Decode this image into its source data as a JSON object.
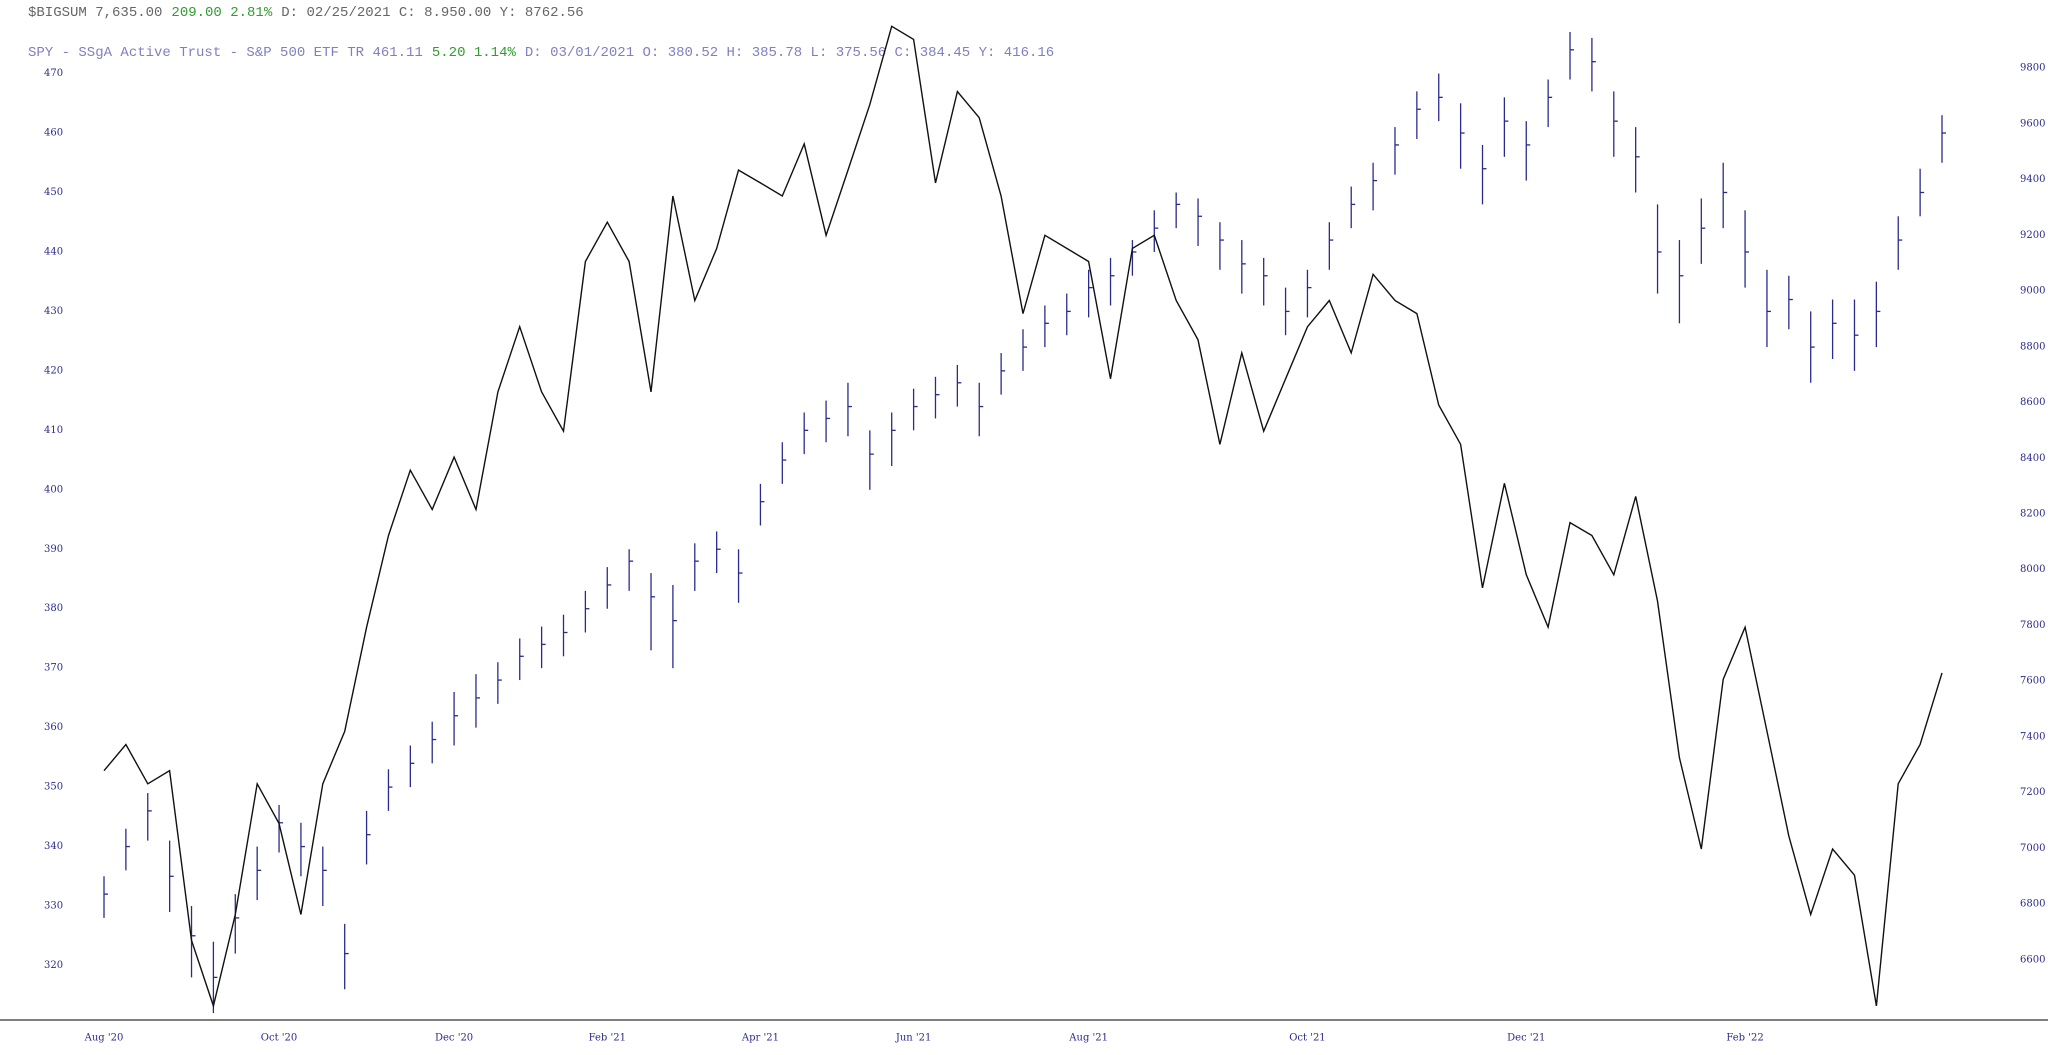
{
  "chart_data": {
    "type": "ohlc",
    "header": [
      [
        {
          "text": "$BIGSUM 7,635.00",
          "color": "#666666"
        },
        {
          "text": "209.00 2.81%",
          "color": "#2e9e2e"
        },
        {
          "text": "D: 02/25/2021 C: 8.950.00 Y:  8762.56",
          "color": "#666666"
        }
      ],
      [
        {
          "text": "SPY - SSgA Active Trust - S&P 500 ETF TR 461.11",
          "color": "#8080c0"
        },
        {
          "text": "5.20 1.14%",
          "color": "#2e9e2e"
        },
        {
          "text": "D: 03/01/2021 O: 380.52 H: 385.78 L: 375.56 C: 384.45 Y: 416.16",
          "color": "#8080c0"
        }
      ]
    ],
    "categories": [
      "Aug '20",
      null,
      null,
      null,
      null,
      null,
      null,
      null,
      "Oct '20",
      null,
      null,
      null,
      null,
      null,
      null,
      null,
      "Dec '20",
      null,
      null,
      null,
      null,
      null,
      null,
      "Feb '21",
      null,
      null,
      null,
      null,
      null,
      null,
      "Apr '21",
      null,
      null,
      null,
      null,
      null,
      null,
      "Jun '21",
      null,
      null,
      null,
      null,
      null,
      null,
      null,
      "Aug '21",
      null,
      null,
      null,
      null,
      null,
      null,
      null,
      null,
      null,
      "Oct '21",
      null,
      null,
      null,
      null,
      null,
      null,
      null,
      null,
      null,
      "Dec '21",
      null,
      null,
      null,
      null,
      null,
      null,
      null,
      null,
      null,
      "Feb '22",
      null,
      null,
      null,
      null,
      null,
      null,
      null,
      null,
      null
    ],
    "series": [
      {
        "type": "ohlc",
        "color": "#2b2b8c",
        "axis": "y",
        "high": [
          335,
          343,
          349,
          341,
          330,
          324,
          332,
          340,
          347,
          344,
          340,
          327,
          346,
          353,
          357,
          361,
          366,
          369,
          371,
          375,
          377,
          379,
          383,
          387,
          390,
          386,
          384,
          391,
          393,
          390,
          401,
          408,
          413,
          415,
          418,
          410,
          413,
          417,
          419,
          421,
          418,
          423,
          427,
          431,
          433,
          437,
          439,
          442,
          447,
          450,
          449,
          445,
          442,
          439,
          434,
          437,
          445,
          451,
          455,
          461,
          467,
          470,
          465,
          458,
          466,
          462,
          469,
          477,
          476,
          467,
          461,
          448,
          442,
          449,
          455,
          447,
          437,
          436,
          430,
          432,
          432,
          435,
          446,
          454,
          463
        ],
        "low": [
          328,
          336,
          341,
          329,
          318,
          312,
          322,
          331,
          339,
          335,
          330,
          316,
          337,
          346,
          350,
          354,
          357,
          360,
          364,
          368,
          370,
          372,
          376,
          380,
          383,
          373,
          370,
          383,
          386,
          381,
          394,
          401,
          406,
          408,
          409,
          400,
          404,
          410,
          412,
          414,
          409,
          416,
          420,
          424,
          426,
          429,
          431,
          436,
          440,
          444,
          441,
          437,
          433,
          431,
          426,
          429,
          437,
          444,
          447,
          453,
          459,
          462,
          454,
          448,
          456,
          452,
          461,
          469,
          467,
          456,
          450,
          433,
          428,
          438,
          444,
          434,
          424,
          427,
          418,
          422,
          420,
          424,
          437,
          446,
          455
        ],
        "close": [
          332,
          340,
          346,
          335,
          325,
          318,
          328,
          336,
          344,
          340,
          336,
          322,
          342,
          350,
          354,
          358,
          362,
          365,
          368,
          372,
          374,
          376,
          380,
          384,
          388,
          382,
          378,
          388,
          390,
          386,
          398,
          405,
          410,
          412,
          414,
          406,
          410,
          414,
          416,
          418,
          414,
          420,
          424,
          428,
          430,
          434,
          436,
          440,
          444,
          448,
          446,
          442,
          438,
          436,
          430,
          434,
          442,
          448,
          452,
          458,
          464,
          466,
          460,
          454,
          462,
          458,
          466,
          474,
          472,
          462,
          456,
          440,
          436,
          444,
          450,
          440,
          430,
          432,
          424,
          428,
          426,
          430,
          442,
          450,
          460
        ]
      },
      {
        "type": "line",
        "color": "#111111",
        "axis": "y2",
        "values": [
          7279,
          7373,
          7232,
          7279,
          6670,
          6435,
          6763,
          7232,
          7090,
          6763,
          7232,
          7420,
          7794,
          8123,
          8357,
          8216,
          8404,
          8216,
          8638,
          8872,
          8638,
          8497,
          9106,
          9247,
          9106,
          8638,
          9341,
          8966,
          9153,
          9434,
          9388,
          9341,
          9528,
          9200,
          9434,
          9669,
          9950,
          9903,
          9388,
          9716,
          9622,
          9341,
          8919,
          9200,
          9153,
          9106,
          8685,
          9153,
          9200,
          8966,
          8825,
          8450,
          8778,
          8497,
          8685,
          8872,
          8966,
          8778,
          9060,
          8966,
          8919,
          8591,
          8450,
          7935,
          8310,
          7982,
          7794,
          8169,
          8123,
          7982,
          8263,
          7888,
          7326,
          6998,
          7607,
          7794,
          7420,
          7045,
          6763,
          6998,
          6904,
          6435,
          7232,
          7373,
          7630
        ]
      }
    ],
    "ylim": [
      311,
      478
    ],
    "yticks": [
      320,
      330,
      340,
      350,
      360,
      370,
      380,
      390,
      400,
      410,
      420,
      430,
      440,
      450,
      460,
      470
    ],
    "y2lim": [
      6388,
      9951
    ],
    "y2ticks": [
      6600,
      6800,
      7000,
      7200,
      7400,
      7600,
      7800,
      8000,
      8200,
      8400,
      8600,
      8800,
      9000,
      9200,
      9400,
      9600,
      9800
    ]
  }
}
